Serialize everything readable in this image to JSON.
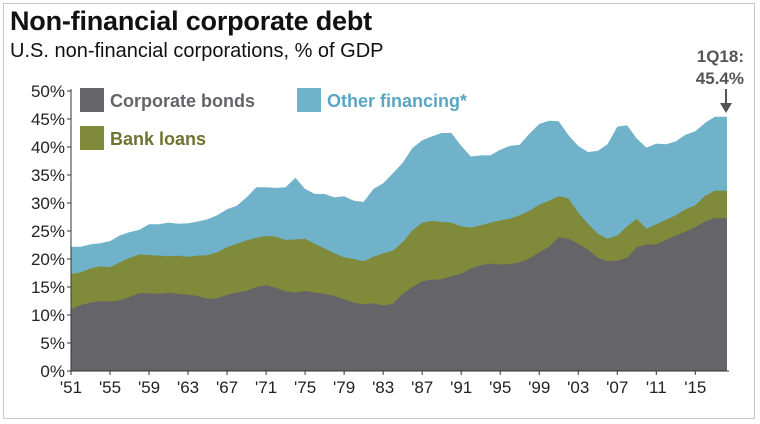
{
  "title": "Non-financial corporate debt",
  "subtitle": "U.S. non-financial corporations, % of GDP",
  "annotation": {
    "line1": "1Q18:",
    "line2": "45.4%"
  },
  "colors": {
    "corporate_bonds": "#646469",
    "bank_loans": "#7f8b3a",
    "other_financing": "#6fb2c9",
    "axis": "#333333",
    "legend_corporate_bonds_text": "#646469",
    "legend_bank_loans_text": "#6b7430",
    "legend_other_financing_text": "#5aa6c2",
    "annotation": "#555555"
  },
  "chart_data": {
    "type": "area",
    "stacked": true,
    "title": "Non-financial corporate debt",
    "subtitle": "U.S. non-financial corporations, % of GDP",
    "xlabel": "",
    "ylabel": "",
    "ylim": [
      0,
      50
    ],
    "xlim": [
      1951,
      2018.25
    ],
    "yticks": [
      "0%",
      "5%",
      "10%",
      "15%",
      "20%",
      "25%",
      "30%",
      "35%",
      "40%",
      "45%",
      "50%"
    ],
    "yticks_values": [
      0,
      5,
      10,
      15,
      20,
      25,
      30,
      35,
      40,
      45,
      50
    ],
    "xticks": [
      "'51",
      "'55",
      "'59",
      "'63",
      "'67",
      "'71",
      "'75",
      "'79",
      "'83",
      "'87",
      "'91",
      "'95",
      "'99",
      "'03",
      "'07",
      "'11",
      "'15"
    ],
    "xticks_values": [
      1951,
      1955,
      1959,
      1963,
      1967,
      1971,
      1975,
      1979,
      1983,
      1987,
      1991,
      1995,
      1999,
      2003,
      2007,
      2011,
      2015
    ],
    "grid": false,
    "legend_position": "top-left",
    "x": [
      1951,
      1952,
      1953,
      1954,
      1955,
      1956,
      1957,
      1958,
      1959,
      1960,
      1961,
      1962,
      1963,
      1964,
      1965,
      1966,
      1967,
      1968,
      1969,
      1970,
      1971,
      1972,
      1973,
      1974,
      1975,
      1976,
      1977,
      1978,
      1979,
      1980,
      1981,
      1982,
      1983,
      1984,
      1985,
      1986,
      1987,
      1988,
      1989,
      1990,
      1991,
      1992,
      1993,
      1994,
      1995,
      1996,
      1997,
      1998,
      1999,
      2000,
      2001,
      2002,
      2003,
      2004,
      2005,
      2006,
      2007,
      2008,
      2009,
      2010,
      2011,
      2012,
      2013,
      2014,
      2015,
      2016,
      2017,
      2018.25
    ],
    "series": [
      {
        "name": "Corporate bonds",
        "key": "corporate_bonds",
        "values": [
          11.0,
          11.8,
          12.2,
          12.5,
          12.4,
          12.6,
          13.2,
          13.9,
          13.9,
          13.8,
          14.0,
          13.8,
          13.6,
          13.4,
          12.9,
          13.0,
          13.6,
          14.0,
          14.3,
          15.0,
          15.3,
          14.9,
          14.2,
          14.0,
          14.3,
          14.0,
          13.8,
          13.4,
          12.8,
          12.2,
          11.9,
          12.1,
          11.7,
          12.0,
          13.8,
          15.0,
          16.0,
          16.3,
          16.4,
          16.9,
          17.4,
          18.3,
          18.9,
          19.2,
          19.0,
          19.1,
          19.4,
          20.1,
          21.2,
          22.2,
          23.9,
          23.6,
          22.7,
          21.7,
          20.2,
          19.6,
          19.7,
          20.2,
          22.1,
          22.6,
          22.6,
          23.4,
          24.2,
          24.9,
          25.7,
          26.7,
          27.3,
          27.3
        ]
      },
      {
        "name": "Bank loans",
        "key": "bank_loans",
        "values": [
          17.3,
          17.6,
          18.3,
          18.7,
          18.5,
          19.4,
          20.2,
          20.8,
          20.7,
          20.6,
          20.5,
          20.6,
          20.4,
          20.6,
          20.7,
          21.2,
          22.1,
          22.7,
          23.3,
          23.8,
          24.1,
          24.0,
          23.4,
          23.5,
          23.6,
          22.7,
          21.9,
          21.0,
          20.3,
          20.0,
          19.6,
          20.4,
          21.0,
          21.5,
          23.0,
          25.1,
          26.5,
          26.8,
          26.6,
          26.5,
          25.8,
          25.6,
          26.0,
          26.5,
          26.9,
          27.2,
          27.8,
          28.6,
          29.7,
          30.4,
          31.2,
          30.8,
          28.3,
          26.3,
          24.5,
          23.6,
          24.2,
          25.8,
          27.2,
          25.4,
          26.2,
          27.0,
          27.8,
          28.9,
          29.6,
          31.3,
          32.2,
          32.2
        ]
      },
      {
        "name": "Other financing*",
        "key": "other_financing",
        "values": [
          22.2,
          22.2,
          22.6,
          22.8,
          23.2,
          24.2,
          24.8,
          25.2,
          26.2,
          26.2,
          26.5,
          26.3,
          26.4,
          26.7,
          27.1,
          27.8,
          28.9,
          29.5,
          31.0,
          32.8,
          32.8,
          32.7,
          32.8,
          34.5,
          32.5,
          31.6,
          31.6,
          31.0,
          31.2,
          30.4,
          30.2,
          32.5,
          33.5,
          35.3,
          37.2,
          39.8,
          41.2,
          41.9,
          42.5,
          42.5,
          40.2,
          38.3,
          38.5,
          38.5,
          39.5,
          40.2,
          40.4,
          42.4,
          44.1,
          44.7,
          44.6,
          42.1,
          40.2,
          39.1,
          39.3,
          40.5,
          43.6,
          43.9,
          41.5,
          39.9,
          40.6,
          40.5,
          41.0,
          42.2,
          42.8,
          44.3,
          45.4,
          45.4
        ]
      }
    ]
  },
  "legend": [
    {
      "label": "Corporate bonds",
      "key": "corporate_bonds"
    },
    {
      "label": "Other financing*",
      "key": "other_financing"
    },
    {
      "label": "Bank loans",
      "key": "bank_loans"
    }
  ]
}
